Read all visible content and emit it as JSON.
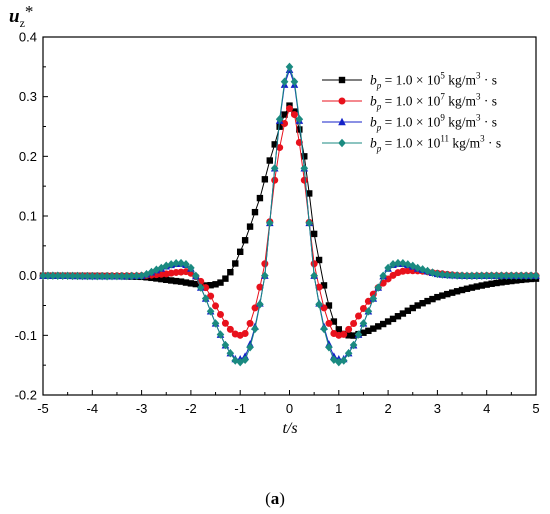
{
  "chart_data": {
    "type": "line",
    "ylabel": "u",
    "ylabel_sub": "z",
    "ylabel_sup": "*",
    "xlabel": "t/s",
    "xlim": [
      -5,
      5
    ],
    "ylim": [
      -0.2,
      0.4
    ],
    "x_ticks": [
      -5,
      -4,
      -3,
      -2,
      -1,
      0,
      1,
      2,
      3,
      4,
      5
    ],
    "x_tick_labels": [
      "-5",
      "-4",
      "-3",
      "-2",
      "-1",
      "0",
      "1",
      "2",
      "3",
      "4",
      "5"
    ],
    "y_ticks": [
      -0.2,
      -0.1,
      0.0,
      0.1,
      0.2,
      0.3,
      0.4
    ],
    "y_tick_labels": [
      "-0.2",
      "-0.1",
      "0.0",
      "0.1",
      "0.2",
      "0.3",
      "0.4"
    ],
    "grid": false,
    "legend_position": "top-right",
    "x_step": 0.1,
    "series": [
      {
        "name": "b_p = 1.0×10^5 kg/m^3·s",
        "legend": {
          "prefix": "b",
          "sub": "p",
          "mid": " = 1.0 × 10",
          "exp": "5",
          "unit": " kg/m",
          "unit_exp": "3",
          "suffix": " · s"
        },
        "color": "#000000",
        "marker": "square",
        "x": [
          -5,
          5
        ],
        "y_anchor_x": [
          -5.0,
          -3.0,
          -2.2,
          -1.8,
          -1.6,
          -1.3,
          -1.0,
          -0.6,
          -0.3,
          -0.1,
          0.0,
          0.1,
          0.3,
          0.5,
          0.8,
          1.0,
          1.2,
          1.4,
          1.8,
          2.2,
          2.6,
          3.0,
          3.5,
          4.0,
          4.5,
          5.0
        ],
        "y_anchor_y": [
          0.0,
          -0.002,
          -0.01,
          -0.015,
          -0.016,
          -0.005,
          0.04,
          0.13,
          0.22,
          0.27,
          0.285,
          0.275,
          0.2,
          0.07,
          -0.05,
          -0.09,
          -0.1,
          -0.098,
          -0.085,
          -0.068,
          -0.05,
          -0.036,
          -0.024,
          -0.015,
          -0.009,
          -0.005
        ]
      },
      {
        "name": "b_p = 1.0×10^7 kg/m^3·s",
        "legend": {
          "prefix": "b",
          "sub": "p",
          "mid": " = 1.0 × 10",
          "exp": "7",
          "unit": " kg/m",
          "unit_exp": "3",
          "suffix": " · s"
        },
        "color": "#e8111c",
        "marker": "circle",
        "y_anchor_x": [
          -5.0,
          -3.0,
          -2.5,
          -2.2,
          -2.0,
          -1.7,
          -1.4,
          -1.2,
          -1.0,
          -0.8,
          -0.5,
          -0.3,
          -0.1,
          0.0,
          0.1,
          0.3,
          0.5,
          0.8,
          1.0,
          1.2,
          1.5,
          1.8,
          2.2,
          2.6,
          3.0,
          3.5,
          4.0,
          5.0
        ],
        "y_anchor_y": [
          0.0,
          0.0,
          0.003,
          0.006,
          0.004,
          -0.02,
          -0.065,
          -0.09,
          -0.1,
          -0.08,
          0.02,
          0.16,
          0.255,
          0.28,
          0.27,
          0.16,
          0.02,
          -0.08,
          -0.1,
          -0.09,
          -0.055,
          -0.02,
          0.005,
          0.008,
          0.004,
          0.0,
          0.0,
          0.0
        ]
      },
      {
        "name": "b_p = 1.0×10^9 kg/m^3·s",
        "legend": {
          "prefix": "b",
          "sub": "p",
          "mid": " = 1.0 × 10",
          "exp": "9",
          "unit": " kg/m",
          "unit_exp": "3",
          "suffix": " · s"
        },
        "color": "#1422c8",
        "marker": "triangle",
        "y_anchor_x": [
          -5.0,
          -3.0,
          -2.6,
          -2.4,
          -2.2,
          -2.0,
          -1.8,
          -1.5,
          -1.2,
          -1.0,
          -0.8,
          -0.5,
          -0.3,
          -0.1,
          0.0,
          0.1,
          0.3,
          0.5,
          0.8,
          1.0,
          1.2,
          1.5,
          1.8,
          2.0,
          2.2,
          2.4,
          2.6,
          3.0,
          3.5,
          4.0,
          5.0
        ],
        "y_anchor_y": [
          0.0,
          0.0,
          0.012,
          0.018,
          0.02,
          0.012,
          -0.02,
          -0.08,
          -0.13,
          -0.14,
          -0.115,
          0.0,
          0.18,
          0.32,
          0.345,
          0.32,
          0.18,
          0.0,
          -0.115,
          -0.14,
          -0.13,
          -0.08,
          -0.02,
          0.012,
          0.02,
          0.018,
          0.012,
          0.003,
          0.0,
          0.0,
          0.0
        ]
      },
      {
        "name": "b_p = 1.0×10^11 kg/m^3·s",
        "legend": {
          "prefix": "b",
          "sub": "p",
          "mid": " = 1.0 × 10",
          "exp": "11",
          "unit": " kg/m",
          "unit_exp": "3",
          "suffix": " · s"
        },
        "color": "#1a8a80",
        "marker": "diamond",
        "y_anchor_x": [
          -5.0,
          -3.0,
          -2.6,
          -2.4,
          -2.2,
          -2.0,
          -1.8,
          -1.5,
          -1.2,
          -1.0,
          -0.8,
          -0.5,
          -0.3,
          -0.1,
          0.0,
          0.1,
          0.3,
          0.5,
          0.8,
          1.0,
          1.2,
          1.5,
          1.8,
          2.0,
          2.2,
          2.4,
          2.6,
          3.0,
          3.5,
          4.0,
          5.0
        ],
        "y_anchor_y": [
          0.0,
          0.0,
          0.013,
          0.019,
          0.021,
          0.013,
          -0.02,
          -0.08,
          -0.13,
          -0.145,
          -0.12,
          0.0,
          0.18,
          0.325,
          0.35,
          0.325,
          0.18,
          0.0,
          -0.12,
          -0.145,
          -0.13,
          -0.08,
          -0.02,
          0.013,
          0.021,
          0.019,
          0.013,
          0.003,
          0.0,
          0.0,
          0.0
        ]
      }
    ]
  },
  "caption": {
    "open": "(",
    "letter": "a",
    "close": ")"
  }
}
